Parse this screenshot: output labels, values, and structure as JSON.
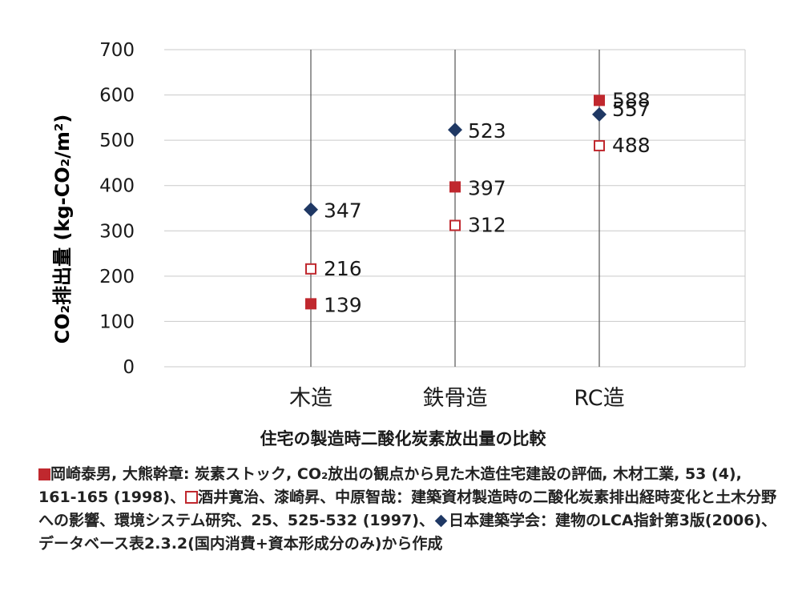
{
  "chart_data": {
    "type": "scatter",
    "categories": [
      "木造",
      "鉄骨造",
      "RC造"
    ],
    "ylabel": "CO₂排出量 (kg-CO₂/m²)",
    "ylim": [
      0,
      700
    ],
    "yticks": [
      0,
      100,
      200,
      300,
      400,
      500,
      600,
      700
    ],
    "grid": true,
    "series": [
      {
        "key": "okazaki",
        "marker": "square-filled",
        "color": "#c0282e",
        "values": [
          139,
          397,
          588
        ]
      },
      {
        "key": "sakai",
        "marker": "square-open",
        "color": "#c0282e",
        "values": [
          216,
          312,
          488
        ]
      },
      {
        "key": "aij",
        "marker": "diamond-filled",
        "color": "#1f3864",
        "values": [
          347,
          523,
          557
        ]
      }
    ],
    "data_labels": {
      "okazaki": [
        "139",
        "397",
        "588"
      ],
      "sakai": [
        "216",
        "312",
        "488"
      ],
      "aij": [
        "347",
        "523",
        "557"
      ]
    },
    "tick_labels": [
      "0",
      "100",
      "200",
      "300",
      "400",
      "500",
      "600",
      "700"
    ]
  },
  "caption": {
    "title": "住宅の製造時二酸化炭素放出量の比較",
    "ref1": "岡崎泰男, 大熊幹章: 炭素ストック, CO₂放出の観点から見た木造住宅建設の評価, 木材工業, 53 (4), 161-165 (1998)、",
    "ref2": "酒井寛治、漆崎昇、中原智哉：建築資材製造時の二酸化炭素排出経時変化と土木分野への影響、環境システム研究、25、525-532 (1997)、",
    "ref3": "日本建築学会：建物のLCA指針第3版(2006)、データベース表2.3.2(国内消費+資本形成分のみ)から作成"
  },
  "colors": {
    "red": "#c0282e",
    "navy": "#1f3864",
    "grid": "#c9c9c9"
  }
}
